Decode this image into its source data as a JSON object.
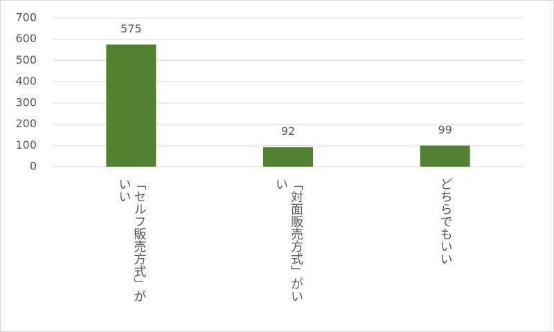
{
  "chart_data": {
    "type": "bar",
    "categories": [
      "「セルフ販売方式」がいい",
      "「対面販売方式」がいい",
      "どちらでもいい"
    ],
    "values": [
      575,
      92,
      99
    ],
    "color": "#548235",
    "ylim": [
      0,
      700
    ],
    "yticks": [
      0,
      100,
      200,
      300,
      400,
      500,
      600,
      700
    ],
    "grid": true
  }
}
